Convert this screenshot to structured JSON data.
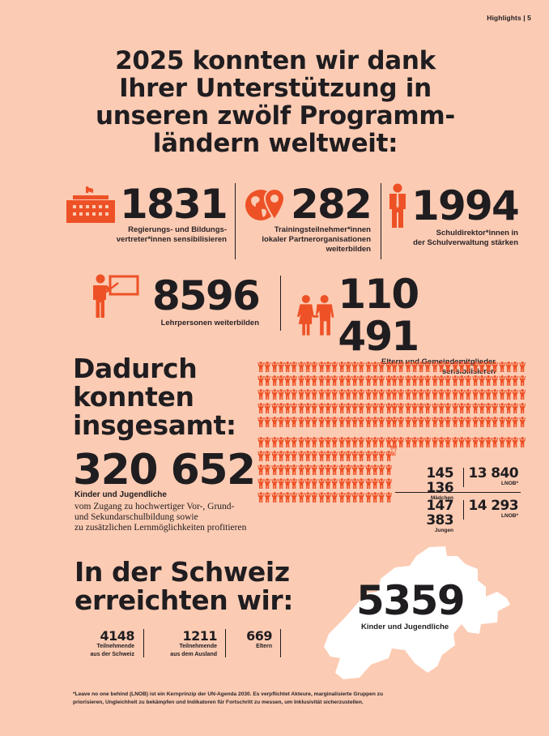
{
  "header": {
    "section": "Highlights",
    "separator": "|",
    "page_number": "5",
    "text": "Highlights | 5"
  },
  "main_title": {
    "lines": [
      "2025 konnten wir dank",
      "Ihrer Unterstützung in",
      "unseren zwölf Programm-",
      "ländern weltweit:"
    ]
  },
  "stats_row1": [
    {
      "icon": "government-building-icon",
      "value": "1831",
      "label_lines": [
        "Regierungs- und Bildungs-",
        "vertreter*innen sensibilisieren"
      ]
    },
    {
      "icon": "globe-location-pin-icon",
      "value": "282",
      "label_lines": [
        "Trainingsteilnehmer*innen",
        "lokaler Partnerorganisationen",
        "weiterbilden"
      ]
    },
    {
      "icon": "principal-person-tie-icon",
      "value": "1994",
      "label_lines": [
        "Schuldirektor*innen in",
        "der Schulverwaltung stärken"
      ]
    }
  ],
  "stats_row2": [
    {
      "icon": "teacher-whiteboard-icon",
      "value": "8596",
      "label_lines": [
        "Lehrpersonen weiterbilden"
      ]
    },
    {
      "icon": "parents-couple-icon",
      "value": "110 491",
      "label_lines": [
        "Eltern und Gemeindemitglieder",
        "sensibilisieren"
      ]
    }
  ],
  "total_section": {
    "title_lines": [
      "Dadurch",
      "konnten",
      "insgesamt:"
    ],
    "value": "320 652",
    "subtitle": "Kinder und Jugendliche",
    "description_lines": [
      "vom Zugang zu hochwertiger Vor-, Grund-",
      "und Sekundarschulbildung sowie",
      "zu zusätzlichen Lernmöglichkeiten profitieren"
    ],
    "pictogram": {
      "icon": "child-arms-raised-icon",
      "color": "#ee5126",
      "per_row": 20,
      "left_block_rows": 10,
      "right_block_rows": 6,
      "extra_outlined": 1
    },
    "breakdown": [
      {
        "value": "145 136",
        "label": "Mädchen"
      },
      {
        "value": "13 840",
        "label": "LNOB*"
      },
      {
        "value": "147 383",
        "label": "Jungen"
      },
      {
        "value": "14 293",
        "label": "LNOB*"
      }
    ]
  },
  "switzerland_section": {
    "title_lines": [
      "In der Schweiz",
      "erreichten wir:"
    ],
    "stats": [
      {
        "value": "4148",
        "label_lines": [
          "Teilnehmende",
          "aus der Schweiz"
        ]
      },
      {
        "value": "1211",
        "label_lines": [
          "Teilnehmende",
          "aus dem Ausland"
        ]
      },
      {
        "value": "669",
        "label_lines": [
          "Eltern"
        ]
      }
    ],
    "map": {
      "icon": "switzerland-map-icon",
      "value": "5359",
      "label": "Kinder und Jugendliche"
    }
  },
  "footnote": {
    "lines": [
      "*Leave no one behind (LNOB) ist ein Kernprinzip der UN-Agenda 2030. Es verpflichtet Akteure, marginalisierte Gruppen zu",
      "priorisieren, Ungleichheit zu bekämpfen und Indikatoren für Fortschritt zu messen, um Inklusivität sicherzustellen."
    ]
  },
  "colors": {
    "background": "#fccbb3",
    "accent": "#ee5126",
    "text": "#1f1d20",
    "map": "#ffffff"
  }
}
